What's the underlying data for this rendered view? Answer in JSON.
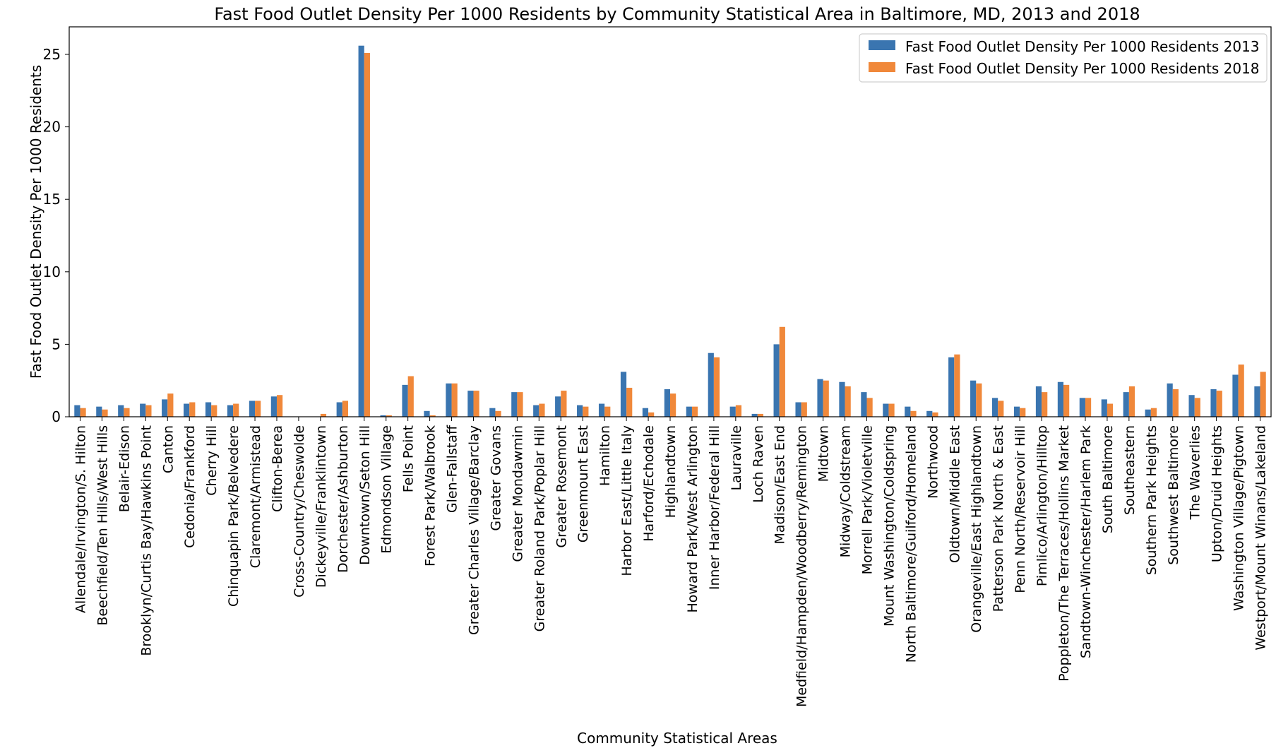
{
  "chart_data": {
    "type": "bar",
    "title": "Fast Food Outlet Density Per 1000 Residents by Community Statistical Area in Baltimore, MD, 2013 and 2018",
    "xlabel": "Community Statistical Areas",
    "ylabel": "Fast Food Outlet Density Per 1000 Residents",
    "ylim": [
      0,
      26.9
    ],
    "yticks": [
      0,
      5,
      10,
      15,
      20,
      25
    ],
    "grid": false,
    "legend_position": "top-right",
    "colors": [
      "#3a75b0",
      "#f0883a"
    ],
    "categories": [
      "Allendale/Irvington/S. Hilton",
      "Beechfield/Ten Hills/West Hills",
      "Belair-Edison",
      "Brooklyn/Curtis Bay/Hawkins Point",
      "Canton",
      "Cedonia/Frankford",
      "Cherry Hill",
      "Chinquapin Park/Belvedere",
      "Claremont/Armistead",
      "Clifton-Berea",
      "Cross-Country/Cheswolde",
      "Dickeyville/Franklintown",
      "Dorchester/Ashburton",
      "Downtown/Seton Hill",
      "Edmondson Village",
      "Fells Point",
      "Forest Park/Walbrook",
      "Glen-Fallstaff",
      "Greater Charles Village/Barclay",
      "Greater Govans",
      "Greater Mondawmin",
      "Greater Roland Park/Poplar Hill",
      "Greater Rosemont",
      "Greenmount East",
      "Hamilton",
      "Harbor East/Little Italy",
      "Harford/Echodale",
      "Highlandtown",
      "Howard Park/West Arlington",
      "Inner Harbor/Federal Hill",
      "Lauraville",
      "Loch Raven",
      "Madison/East End",
      "Medfield/Hampden/Woodberry/Remington",
      "Midtown",
      "Midway/Coldstream",
      "Morrell Park/Violetville",
      "Mount Washington/Coldspring",
      "North Baltimore/Guilford/Homeland",
      "Northwood",
      "Oldtown/Middle East",
      "Orangeville/East Highlandtown",
      "Patterson Park North & East",
      "Penn North/Reservoir Hill",
      "Pimlico/Arlington/Hilltop",
      "Poppleton/The Terraces/Hollins Market",
      "Sandtown-Winchester/Harlem Park",
      "South Baltimore",
      "Southeastern",
      "Southern Park Heights",
      "Southwest Baltimore",
      "The Waverlies",
      "Upton/Druid Heights",
      "Washington Village/Pigtown",
      "Westport/Mount Winans/Lakeland"
    ],
    "series": [
      {
        "name": "Fast Food Outlet Density Per 1000 Residents 2013",
        "values": [
          0.8,
          0.7,
          0.8,
          0.9,
          1.2,
          0.9,
          1.0,
          0.8,
          1.1,
          1.4,
          0.0,
          0.0,
          1.0,
          25.6,
          0.1,
          2.2,
          0.4,
          2.3,
          1.8,
          0.6,
          1.7,
          0.8,
          1.4,
          0.8,
          0.9,
          3.1,
          0.6,
          1.9,
          0.7,
          4.4,
          0.7,
          0.2,
          5.0,
          1.0,
          2.6,
          2.4,
          1.7,
          0.9,
          0.7,
          0.4,
          4.1,
          2.5,
          1.3,
          0.7,
          2.1,
          2.4,
          1.3,
          1.2,
          1.7,
          0.5,
          2.3,
          1.5,
          1.9,
          2.9,
          2.1
        ]
      },
      {
        "name": "Fast Food Outlet Density Per 1000 Residents 2018",
        "values": [
          0.6,
          0.5,
          0.6,
          0.8,
          1.6,
          1.0,
          0.8,
          0.9,
          1.1,
          1.5,
          0.0,
          0.2,
          1.1,
          25.1,
          0.1,
          2.8,
          0.1,
          2.3,
          1.8,
          0.4,
          1.7,
          0.9,
          1.8,
          0.7,
          0.7,
          2.0,
          0.3,
          1.6,
          0.7,
          4.1,
          0.8,
          0.2,
          6.2,
          1.0,
          2.5,
          2.1,
          1.3,
          0.9,
          0.4,
          0.3,
          4.3,
          2.3,
          1.1,
          0.6,
          1.7,
          2.2,
          1.3,
          0.9,
          2.1,
          0.6,
          1.9,
          1.3,
          1.8,
          3.6,
          3.1
        ]
      }
    ]
  }
}
